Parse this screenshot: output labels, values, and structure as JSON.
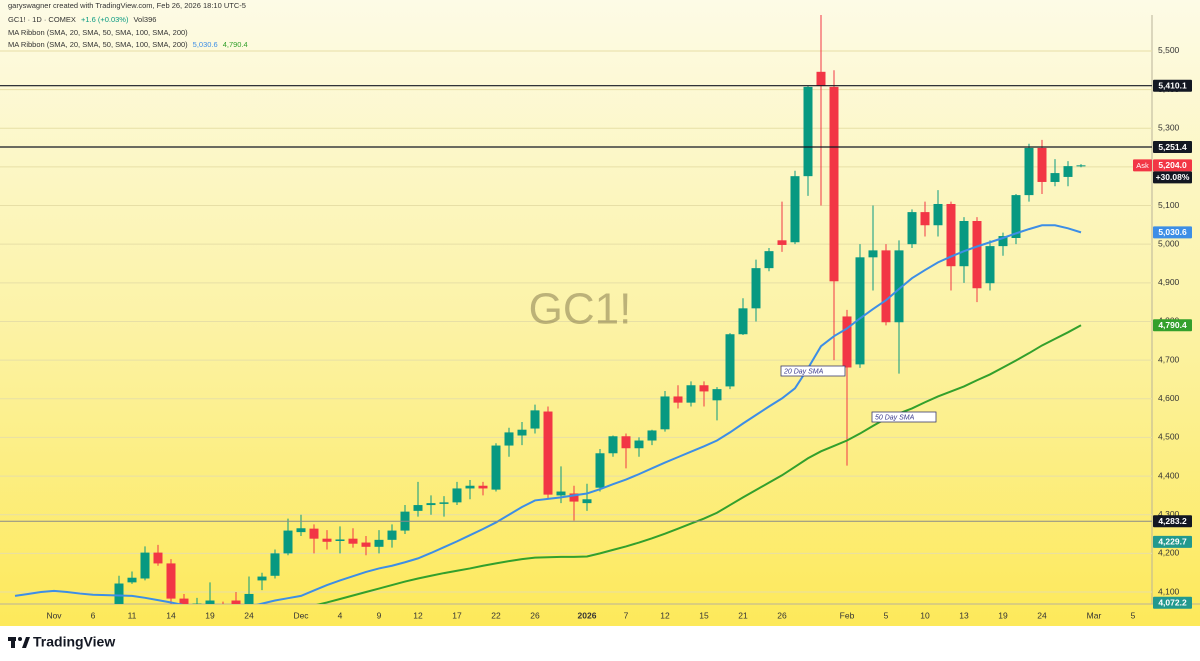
{
  "header": {
    "creator": "garyswagner created with TradingView.com, Feb 26, 2026 18:10 UTC-5",
    "symbol": "GC1! · 1D · COMEX",
    "change": "+1.6 (+0.03%)",
    "volume": "Vol396",
    "indicator_1": "MA Ribbon (SMA, 20, SMA, 50, SMA, 100, SMA, 200)",
    "indicator_2": "MA Ribbon (SMA, 20, SMA, 50, SMA, 100, SMA, 200)"
  },
  "footer": {
    "brand": "TradingView"
  },
  "chart_data": {
    "type": "candlestick",
    "title": "GC1!",
    "categories": [
      null,
      null,
      null,
      "Nov",
      null,
      null,
      "6",
      null,
      null,
      "11",
      null,
      null,
      "14",
      null,
      null,
      "19",
      null,
      null,
      "24",
      null,
      null,
      null,
      "Dec",
      null,
      null,
      "4",
      null,
      null,
      "9",
      null,
      null,
      "12",
      null,
      null,
      "17",
      null,
      null,
      "22",
      null,
      null,
      "26",
      null,
      null,
      null,
      "2026",
      null,
      null,
      "7",
      null,
      null,
      "12",
      null,
      null,
      "15",
      null,
      null,
      "21",
      null,
      null,
      "26",
      null,
      null,
      null,
      null,
      "Feb",
      null,
      null,
      "5",
      null,
      null,
      "10",
      null,
      null,
      "13",
      null,
      null,
      "19",
      null,
      null,
      "24",
      null,
      null,
      null,
      "Mar",
      null,
      null,
      "5"
    ],
    "open": [
      null,
      null,
      null,
      null,
      null,
      null,
      null,
      null,
      4050,
      4125,
      4135,
      4202,
      4174,
      4083,
      4055,
      4065,
      4050,
      4078,
      4066,
      4130,
      4142,
      4200,
      4255,
      4264,
      4238,
      4232,
      4238,
      4228,
      4217,
      4235,
      4259,
      4310,
      4325,
      4328,
      4332,
      4368,
      4375,
      4365,
      4479,
      4505,
      4523,
      4567,
      4350,
      4355,
      4330,
      4370,
      4459,
      4503,
      4472,
      4492,
      4521,
      4606,
      4590,
      4635,
      4596,
      4632,
      4767,
      4834,
      4938,
      5010,
      5005,
      5176,
      5446,
      5407,
      4813,
      4689,
      4966,
      4984,
      4798,
      5000,
      5083,
      5049,
      5104,
      4943,
      5060,
      4899,
      4995,
      5016,
      5127,
      5249,
      5161,
      5174,
      5202,
      null,
      null,
      null,
      null
    ],
    "high": [
      null,
      null,
      null,
      null,
      null,
      null,
      null,
      null,
      4142,
      4153,
      4218,
      4222,
      4185,
      4095,
      4085,
      4125,
      4075,
      4100,
      4140,
      4150,
      4210,
      4290,
      4300,
      4275,
      4260,
      4270,
      4265,
      4245,
      4260,
      4275,
      4325,
      4385,
      4350,
      4348,
      4385,
      4390,
      4385,
      4485,
      4525,
      4540,
      4585,
      4580,
      4425,
      4375,
      4380,
      4470,
      4505,
      4510,
      4500,
      4520,
      4620,
      4635,
      4645,
      4645,
      4630,
      4770,
      4860,
      4960,
      4990,
      5110,
      5190,
      5410,
      5595,
      5450,
      4830,
      5000,
      5100,
      5000,
      5010,
      5090,
      5110,
      5140,
      5110,
      5070,
      5070,
      5010,
      5030,
      5130,
      5260,
      5270,
      5220,
      5215,
      5207,
      null,
      null,
      null,
      null
    ],
    "low": [
      null,
      null,
      null,
      null,
      null,
      null,
      null,
      null,
      4040,
      4121,
      4130,
      4168,
      4068,
      4050,
      4030,
      4050,
      4000,
      4035,
      4050,
      4105,
      4135,
      4195,
      4245,
      4200,
      4210,
      4200,
      4215,
      4195,
      4200,
      4215,
      4250,
      4295,
      4300,
      4295,
      4325,
      4340,
      4350,
      4360,
      4450,
      4480,
      4510,
      4340,
      4330,
      4285,
      4310,
      4360,
      4450,
      4420,
      4450,
      4480,
      4515,
      4575,
      4580,
      4580,
      4544,
      4625,
      4765,
      4800,
      4930,
      4980,
      5000,
      5125,
      5100,
      4700,
      4427,
      4680,
      4880,
      4790,
      4665,
      4990,
      5020,
      5020,
      4880,
      4900,
      4850,
      4880,
      4970,
      5000,
      5110,
      5130,
      5150,
      5150,
      5199,
      null,
      null,
      null,
      null
    ],
    "close": [
      null,
      null,
      null,
      null,
      null,
      null,
      null,
      null,
      4122,
      4137,
      4202,
      4174,
      4083,
      4060,
      4070,
      4078,
      4040,
      4065,
      4095,
      4140,
      4200,
      4259,
      4265,
      4238,
      4230,
      4236,
      4225,
      4217,
      4235,
      4259,
      4308,
      4325,
      4330,
      4332,
      4368,
      4375,
      4368,
      4479,
      4513,
      4520,
      4570,
      4352,
      4360,
      4334,
      4340,
      4459,
      4503,
      4472,
      4492,
      4518,
      4606,
      4590,
      4635,
      4619,
      4625,
      4767,
      4834,
      4938,
      4982,
      4998,
      5176,
      5407,
      5410,
      4904,
      4681,
      4966,
      4984,
      4798,
      4984,
      5083,
      5049,
      5104,
      4943,
      5060,
      4886,
      4995,
      5021,
      5127,
      5249,
      5161,
      5184,
      5202,
      5204,
      null,
      null,
      null,
      null
    ],
    "up_color": "#089981",
    "down_color": "#f23645",
    "series": [
      {
        "name": "20 Day SMA",
        "color": "#3d8ee6",
        "last_label": "5,030.6",
        "values": [
          4090,
          4095,
          4100,
          4103,
          4100,
          4096,
          4093,
          4092,
          4091,
          4090,
          4085,
          4079,
          4073,
          4066,
          4060,
          4055,
          4052,
          4055,
          4062,
          4070,
          4078,
          4084,
          4090,
          4104,
          4118,
          4130,
          4141,
          4152,
          4161,
          4168,
          4177,
          4187,
          4201,
          4216,
          4231,
          4247,
          4263,
          4280,
          4300,
          4320,
          4337,
          4341,
          4345,
          4350,
          4355,
          4366,
          4379,
          4391,
          4405,
          4420,
          4435,
          4449,
          4463,
          4477,
          4492,
          4513,
          4536,
          4558,
          4580,
          4601,
          4627,
          4679,
          4736,
          4762,
          4782,
          4808,
          4832,
          4855,
          4884,
          4912,
          4933,
          4953,
          4968,
          4982,
          4994,
          5005,
          5016,
          5028,
          5039,
          5049,
          5049,
          5041,
          5030.6,
          null,
          null,
          null,
          null
        ]
      },
      {
        "name": "50 Day SMA",
        "color": "#33a02c",
        "last_label": "4,790.4",
        "values": [
          null,
          null,
          null,
          null,
          null,
          null,
          null,
          null,
          null,
          null,
          null,
          null,
          null,
          null,
          null,
          null,
          null,
          null,
          null,
          null,
          null,
          null,
          4058,
          4065,
          4073,
          4082,
          4091,
          4100,
          4109,
          4118,
          4127,
          4135,
          4142,
          4149,
          4155,
          4161,
          4168,
          4174,
          4180,
          4185,
          4189,
          4190,
          4191,
          4191,
          4192,
          4200,
          4209,
          4218,
          4228,
          4239,
          4251,
          4264,
          4277,
          4290,
          4305,
          4325,
          4345,
          4364,
          4383,
          4402,
          4424,
          4446,
          4464,
          4478,
          4492,
          4510,
          4530,
          4549,
          4562,
          4575,
          4591,
          4606,
          4619,
          4632,
          4648,
          4663,
          4681,
          4699,
          4718,
          4738,
          4755,
          4772,
          4790.4,
          null,
          null,
          null,
          null
        ]
      }
    ],
    "ylim": [
      4069,
      5593
    ],
    "yticks": [
      {
        "value": 4100,
        "label": "4,100"
      },
      {
        "value": 4200,
        "label": "4,200"
      },
      {
        "value": 4300,
        "label": "4,300"
      },
      {
        "value": 4400,
        "label": "4,400"
      },
      {
        "value": 4500,
        "label": "4,500"
      },
      {
        "value": 4600,
        "label": "4,600"
      },
      {
        "value": 4700,
        "label": "4,700"
      },
      {
        "value": 4800,
        "label": "4,800"
      },
      {
        "value": 4900,
        "label": "4,900"
      },
      {
        "value": 5000,
        "label": "5,000"
      },
      {
        "value": 5100,
        "label": "5,100"
      },
      {
        "value": 5200,
        "label": "5,200"
      },
      {
        "value": 5300,
        "label": "5,300"
      },
      {
        "value": 5400,
        "label": "5,400"
      },
      {
        "value": 5500,
        "label": "5,500"
      }
    ],
    "grid": true,
    "price_tags": [
      {
        "value": 5410.1,
        "label": "5,410.1",
        "color": "#131722",
        "line": "#131722"
      },
      {
        "value": 5251.4,
        "label": "5,251.4",
        "color": "#131722",
        "line": "#131722"
      },
      {
        "value": 5204.0,
        "label": "5,204.0",
        "color": "#f23645",
        "prefix": "Ask",
        "sub_label": "+30.08%"
      },
      {
        "value": 5030.6,
        "label": "5,030.6",
        "color": "#3d8ee6"
      },
      {
        "value": 4790.4,
        "label": "4,790.4",
        "color": "#33a02c"
      },
      {
        "value": 4283.2,
        "label": "4,283.2",
        "color": "#131722",
        "line": "#8a8a8a"
      },
      {
        "value": 4229.7,
        "label": "4,229.7",
        "color": "#22998e"
      },
      {
        "value": 4072.2,
        "label": "4,072.2",
        "color": "#22998e"
      }
    ]
  }
}
